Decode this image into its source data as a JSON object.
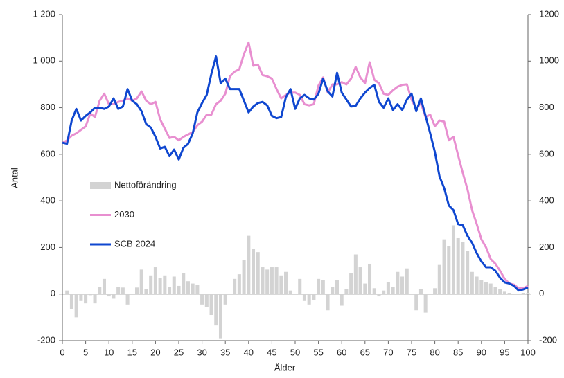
{
  "chart_data": {
    "type": "combo",
    "xlabel": "Ålder",
    "ylabel": "Antal",
    "x": [
      0,
      1,
      2,
      3,
      4,
      5,
      6,
      7,
      8,
      9,
      10,
      11,
      12,
      13,
      14,
      15,
      16,
      17,
      18,
      19,
      20,
      21,
      22,
      23,
      24,
      25,
      26,
      27,
      28,
      29,
      30,
      31,
      32,
      33,
      34,
      35,
      36,
      37,
      38,
      39,
      40,
      41,
      42,
      43,
      44,
      45,
      46,
      47,
      48,
      49,
      50,
      51,
      52,
      53,
      54,
      55,
      56,
      57,
      58,
      59,
      60,
      61,
      62,
      63,
      64,
      65,
      66,
      67,
      68,
      69,
      70,
      71,
      72,
      73,
      74,
      75,
      76,
      77,
      78,
      79,
      80,
      81,
      82,
      83,
      84,
      85,
      86,
      87,
      88,
      89,
      90,
      91,
      92,
      93,
      94,
      95,
      96,
      97,
      98,
      99,
      100
    ],
    "xlim": [
      0,
      100
    ],
    "xticks": [
      0,
      5,
      10,
      15,
      20,
      25,
      30,
      35,
      40,
      45,
      50,
      55,
      60,
      65,
      70,
      75,
      80,
      85,
      90,
      95,
      100
    ],
    "ylim": [
      -200,
      1200
    ],
    "yticks": [
      -200,
      0,
      200,
      400,
      600,
      800,
      {
        "value": 1000,
        "label": "1 000"
      },
      {
        "value": 1200,
        "label": "1 200"
      }
    ],
    "y2lim": [
      -200,
      1200
    ],
    "y2ticks": [
      -200,
      0,
      200,
      400,
      600,
      800,
      1000,
      1200
    ],
    "grid": false,
    "legend": "inside-left",
    "series": [
      {
        "name": "Nettoförändring",
        "type": "bar",
        "color": "#d3d3d3",
        "values": [
          0,
          15,
          -65,
          -100,
          -30,
          -40,
          -5,
          -40,
          30,
          65,
          -10,
          -20,
          30,
          28,
          -45,
          0,
          28,
          105,
          20,
          80,
          115,
          70,
          80,
          30,
          75,
          35,
          90,
          55,
          45,
          40,
          -45,
          -55,
          -90,
          -135,
          -190,
          -45,
          0,
          65,
          85,
          145,
          250,
          195,
          180,
          115,
          105,
          115,
          115,
          80,
          95,
          15,
          0,
          65,
          -30,
          -45,
          -25,
          65,
          60,
          -70,
          30,
          60,
          -50,
          20,
          90,
          170,
          115,
          45,
          130,
          25,
          -10,
          15,
          50,
          30,
          95,
          75,
          110,
          0,
          -70,
          20,
          -80,
          0,
          25,
          125,
          235,
          205,
          295,
          240,
          225,
          185,
          95,
          75,
          60,
          50,
          45,
          30,
          20,
          10,
          5,
          0,
          0,
          5,
          5
        ]
      },
      {
        "name": "2030",
        "type": "line",
        "color": "#e88fd0",
        "values": [
          648,
          660,
          680,
          690,
          705,
          720,
          775,
          760,
          830,
          860,
          815,
          815,
          825,
          830,
          840,
          830,
          840,
          870,
          830,
          815,
          825,
          750,
          710,
          670,
          675,
          660,
          675,
          685,
          695,
          725,
          740,
          770,
          770,
          815,
          830,
          860,
          935,
          955,
          965,
          1030,
          1080,
          980,
          985,
          940,
          935,
          925,
          880,
          840,
          855,
          865,
          865,
          855,
          815,
          810,
          815,
          895,
          930,
          865,
          900,
          900,
          910,
          900,
          925,
          975,
          930,
          905,
          995,
          920,
          905,
          860,
          855,
          875,
          890,
          898,
          900,
          835,
          795,
          820,
          760,
          770,
          720,
          745,
          740,
          660,
          675,
          595,
          520,
          450,
          360,
          300,
          235,
          200,
          150,
          130,
          100,
          65,
          45,
          40,
          25,
          25,
          35
        ]
      },
      {
        "name": "SCB 2024",
        "type": "line",
        "color": "#0f47d0",
        "values": [
          650,
          645,
          745,
          795,
          745,
          765,
          780,
          800,
          800,
          795,
          805,
          840,
          795,
          805,
          880,
          830,
          815,
          785,
          730,
          715,
          675,
          625,
          632,
          592,
          620,
          578,
          628,
          645,
          690,
          780,
          820,
          855,
          945,
          1020,
          905,
          925,
          880,
          880,
          880,
          830,
          780,
          805,
          820,
          825,
          810,
          765,
          755,
          760,
          845,
          880,
          795,
          840,
          855,
          840,
          835,
          860,
          925,
          870,
          848,
          950,
          865,
          835,
          805,
          808,
          840,
          865,
          885,
          898,
          825,
          800,
          840,
          790,
          815,
          790,
          835,
          860,
          785,
          840,
          765,
          690,
          610,
          505,
          455,
          380,
          360,
          300,
          295,
          250,
          220,
          175,
          140,
          115,
          115,
          100,
          70,
          50,
          45,
          35,
          15,
          20,
          28
        ]
      }
    ]
  }
}
